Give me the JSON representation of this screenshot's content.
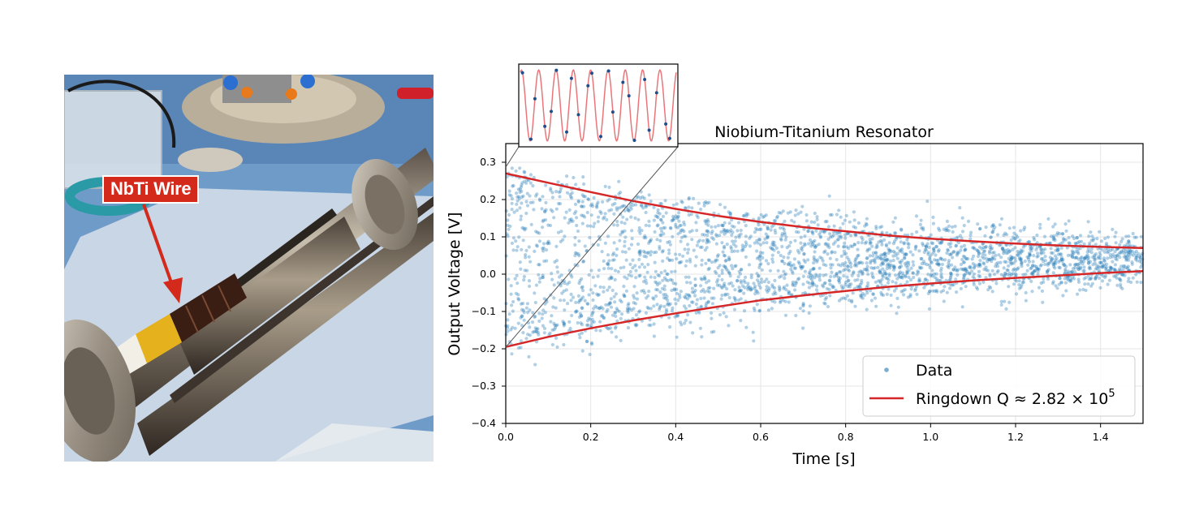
{
  "photo": {
    "callout_label": "NbTi Wire",
    "callout_color": "#d32a1c"
  },
  "chart_data": {
    "type": "scatter",
    "title": "Niobium-Titanium Resonator",
    "xlabel": "Time [s]",
    "ylabel": "Output Voltage [V]",
    "xlim": [
      0.0,
      1.5
    ],
    "ylim": [
      -0.4,
      0.35
    ],
    "xticks": [
      "0.0",
      "0.2",
      "0.4",
      "0.6",
      "0.8",
      "1.0",
      "1.2",
      "1.4"
    ],
    "yticks": [
      "−0.4",
      "−0.3",
      "−0.2",
      "−0.1",
      "0.0",
      "0.1",
      "0.2",
      "0.3"
    ],
    "grid": true,
    "legend_position": "lower-right",
    "series": [
      {
        "name": "Data",
        "kind": "scatter",
        "color": "#1f77b4",
        "description_points": "dense noisy oscillation samples, approx 3000 points filling the decaying envelope",
        "x_range": [
          0.0,
          1.5
        ],
        "envelope_top": [
          [
            0.0,
            0.27
          ],
          [
            0.2,
            0.22
          ],
          [
            0.4,
            0.175
          ],
          [
            0.6,
            0.14
          ],
          [
            0.8,
            0.115
          ],
          [
            1.0,
            0.095
          ],
          [
            1.2,
            0.082
          ],
          [
            1.5,
            0.07
          ]
        ],
        "envelope_bottom": [
          [
            0.0,
            -0.195
          ],
          [
            0.2,
            -0.145
          ],
          [
            0.4,
            -0.105
          ],
          [
            0.6,
            -0.07
          ],
          [
            0.8,
            -0.045
          ],
          [
            1.0,
            -0.025
          ],
          [
            1.2,
            -0.01
          ],
          [
            1.5,
            0.008
          ]
        ]
      },
      {
        "name": "Ringdown Q ≈ 2.82 × 10",
        "name_superscript": "5",
        "kind": "line",
        "color": "#d62728",
        "upper": [
          [
            0.0,
            0.27
          ],
          [
            0.1,
            0.245
          ],
          [
            0.2,
            0.22
          ],
          [
            0.3,
            0.196
          ],
          [
            0.4,
            0.175
          ],
          [
            0.5,
            0.156
          ],
          [
            0.6,
            0.14
          ],
          [
            0.7,
            0.126
          ],
          [
            0.8,
            0.115
          ],
          [
            0.9,
            0.104
          ],
          [
            1.0,
            0.095
          ],
          [
            1.1,
            0.088
          ],
          [
            1.2,
            0.082
          ],
          [
            1.3,
            0.077
          ],
          [
            1.4,
            0.073
          ],
          [
            1.5,
            0.07
          ]
        ],
        "lower": [
          [
            0.0,
            -0.195
          ],
          [
            0.1,
            -0.168
          ],
          [
            0.2,
            -0.145
          ],
          [
            0.3,
            -0.124
          ],
          [
            0.4,
            -0.105
          ],
          [
            0.5,
            -0.087
          ],
          [
            0.6,
            -0.07
          ],
          [
            0.7,
            -0.057
          ],
          [
            0.8,
            -0.045
          ],
          [
            0.9,
            -0.034
          ],
          [
            1.0,
            -0.025
          ],
          [
            1.1,
            -0.017
          ],
          [
            1.2,
            -0.01
          ],
          [
            1.3,
            -0.004
          ],
          [
            1.4,
            0.003
          ],
          [
            1.5,
            0.008
          ]
        ]
      }
    ],
    "inset": {
      "description": "zoomed sinusoid with sample points",
      "cycles": 9,
      "line_color": "#e8767a",
      "point_color": "#1f4e8c"
    }
  }
}
